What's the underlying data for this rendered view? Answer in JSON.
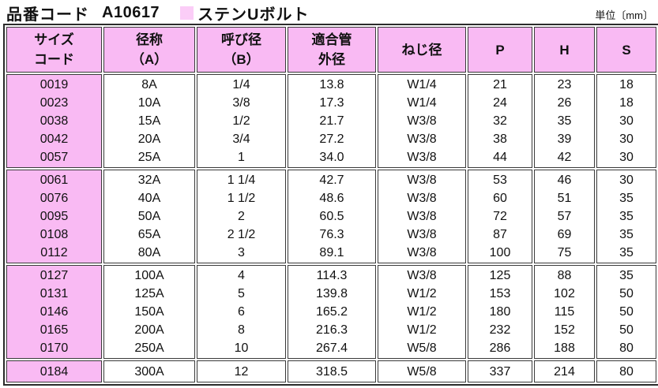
{
  "header": {
    "title_label": "品番コード",
    "product_code": "A10617",
    "product_name": "ステンUボルト",
    "unit_label": "単位〔mm〕"
  },
  "colors": {
    "header_pink": "#f9baf3",
    "swatch_pink": "#fbcdf7",
    "border_dark": "#2b2b2b",
    "cell_border": "#3a3a3a",
    "text": "#111111"
  },
  "table": {
    "headers": [
      {
        "line1": "サイズ",
        "line2": "コード"
      },
      {
        "line1": "径称",
        "line2": "（A）"
      },
      {
        "line1": "呼び径",
        "line2": "（B）"
      },
      {
        "line1": "適合管",
        "line2": "外径"
      },
      {
        "line1": "ねじ径"
      },
      {
        "line1": "P"
      },
      {
        "line1": "H"
      },
      {
        "line1": "S"
      }
    ],
    "column_keys": [
      "size_code",
      "diameter_A",
      "nominal_B",
      "pipe_outer_dia",
      "thread_dia",
      "P",
      "H",
      "S"
    ],
    "groups": [
      {
        "rows": [
          [
            "0019",
            "8A",
            "1/4",
            "13.8",
            "W1/4",
            "21",
            "23",
            "18"
          ],
          [
            "0023",
            "10A",
            "3/8",
            "17.3",
            "W1/4",
            "24",
            "26",
            "18"
          ],
          [
            "0038",
            "15A",
            "1/2",
            "21.7",
            "W3/8",
            "32",
            "35",
            "30"
          ],
          [
            "0042",
            "20A",
            "3/4",
            "27.2",
            "W3/8",
            "38",
            "39",
            "30"
          ],
          [
            "0057",
            "25A",
            "1",
            "34.0",
            "W3/8",
            "44",
            "42",
            "30"
          ]
        ]
      },
      {
        "rows": [
          [
            "0061",
            "32A",
            "1 1/4",
            "42.7",
            "W3/8",
            "53",
            "46",
            "30"
          ],
          [
            "0076",
            "40A",
            "1 1/2",
            "48.6",
            "W3/8",
            "60",
            "51",
            "35"
          ],
          [
            "0095",
            "50A",
            "2",
            "60.5",
            "W3/8",
            "72",
            "57",
            "35"
          ],
          [
            "0108",
            "65A",
            "2 1/2",
            "76.3",
            "W3/8",
            "87",
            "69",
            "35"
          ],
          [
            "0112",
            "80A",
            "3",
            "89.1",
            "W3/8",
            "100",
            "75",
            "35"
          ]
        ]
      },
      {
        "rows": [
          [
            "0127",
            "100A",
            "4",
            "114.3",
            "W3/8",
            "125",
            "88",
            "35"
          ],
          [
            "0131",
            "125A",
            "5",
            "139.8",
            "W1/2",
            "153",
            "102",
            "50"
          ],
          [
            "0146",
            "150A",
            "6",
            "165.2",
            "W1/2",
            "180",
            "115",
            "50"
          ],
          [
            "0165",
            "200A",
            "8",
            "216.3",
            "W1/2",
            "232",
            "152",
            "50"
          ],
          [
            "0170",
            "250A",
            "10",
            "267.4",
            "W5/8",
            "286",
            "188",
            "80"
          ]
        ]
      },
      {
        "rows": [
          [
            "0184",
            "300A",
            "12",
            "318.5",
            "W5/8",
            "337",
            "214",
            "80"
          ]
        ]
      }
    ]
  }
}
